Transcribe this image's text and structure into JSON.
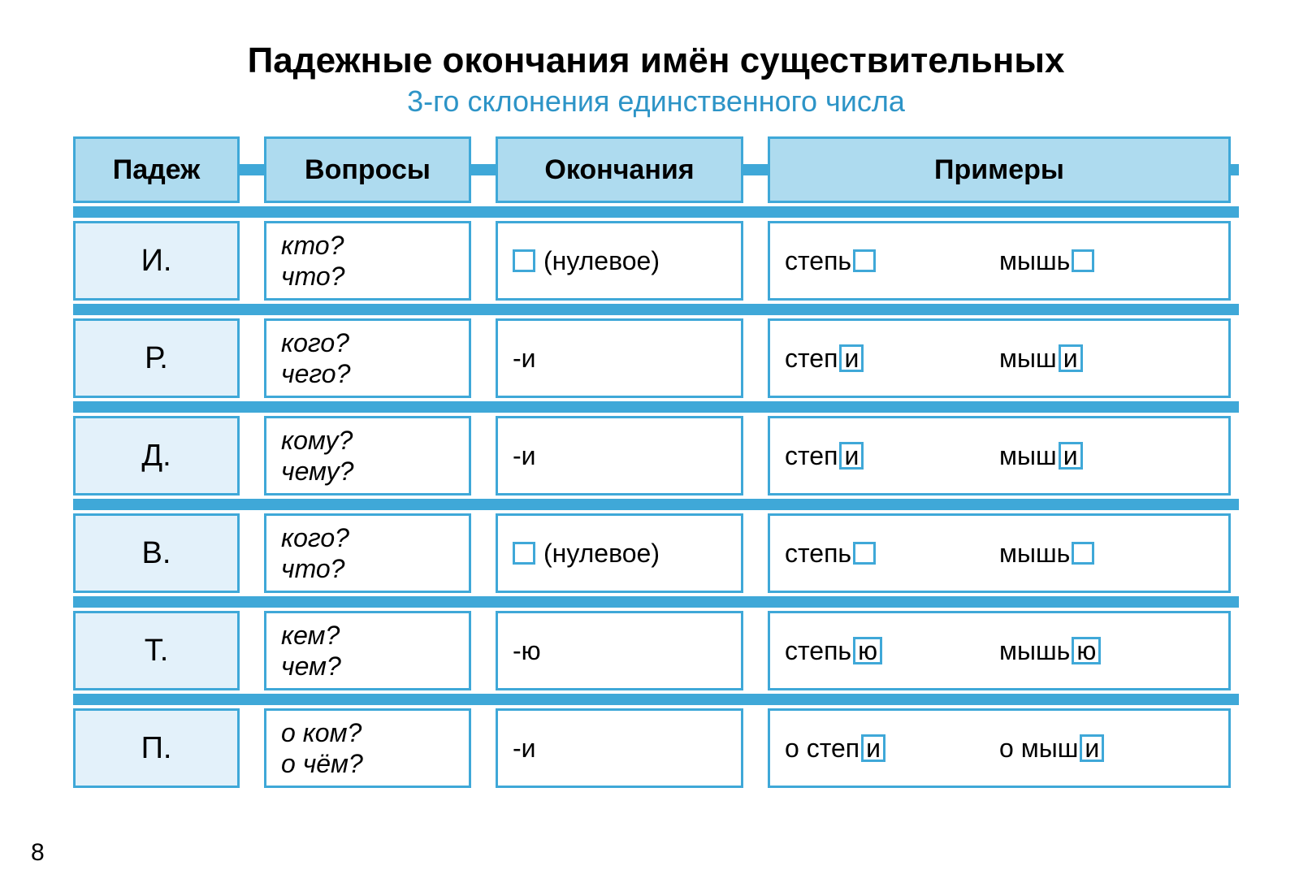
{
  "colors": {
    "accent": "#3fa8d8",
    "header_fill": "#aedbef",
    "case_fill": "#e3f1fa",
    "cell_bg": "#ffffff",
    "subtitle": "#2d94c7",
    "text": "#000000",
    "border_width": "3px",
    "box_border_width": "3px"
  },
  "layout": {
    "col_widths": "205px 30px 255px 30px 305px 30px 570px",
    "row_height_header": 82,
    "row_height_data": 98,
    "row_gap": 22,
    "connector_height": 14
  },
  "title": {
    "main": "Падежные окончания имён существительных",
    "sub": "3-го склонения единственного числа"
  },
  "headers": {
    "case": "Падеж",
    "questions": "Вопросы",
    "endings": "Окончания",
    "examples": "Примеры"
  },
  "null_label": "(нулевое)",
  "rows": [
    {
      "case": "И.",
      "q1": "кто?",
      "q2": "что?",
      "ending_null": true,
      "ending": "",
      "ex1_stem": "степь",
      "ex1_suf": "",
      "ex2_stem": "мышь",
      "ex2_suf": ""
    },
    {
      "case": "Р.",
      "q1": "кого?",
      "q2": "чего?",
      "ending_null": false,
      "ending": "-и",
      "ex1_stem": "степ",
      "ex1_suf": "и",
      "ex2_stem": "мыш",
      "ex2_suf": "и"
    },
    {
      "case": "Д.",
      "q1": "кому?",
      "q2": "чему?",
      "ending_null": false,
      "ending": "-и",
      "ex1_stem": "степ",
      "ex1_suf": "и",
      "ex2_stem": "мыш",
      "ex2_suf": "и"
    },
    {
      "case": "В.",
      "q1": "кого?",
      "q2": "что?",
      "ending_null": true,
      "ending": "",
      "ex1_stem": "степь",
      "ex1_suf": "",
      "ex2_stem": "мышь",
      "ex2_suf": ""
    },
    {
      "case": "Т.",
      "q1": "кем?",
      "q2": "чем?",
      "ending_null": false,
      "ending": "-ю",
      "ex1_stem": "степь",
      "ex1_suf": "ю",
      "ex2_stem": "мышь",
      "ex2_suf": "ю"
    },
    {
      "case": "П.",
      "q1": "о ком?",
      "q2": "о чём?",
      "ending_null": false,
      "ending": "-и",
      "ex1_stem": "о степ",
      "ex1_suf": "и",
      "ex2_stem": "о мыш",
      "ex2_suf": "и"
    }
  ],
  "page_number": "8"
}
